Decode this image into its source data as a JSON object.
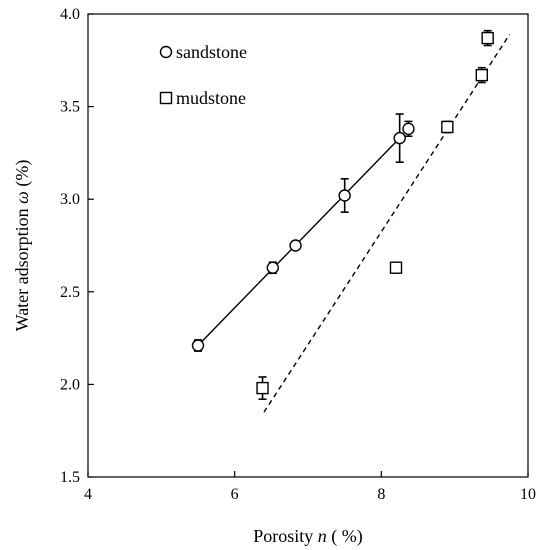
{
  "chart_data": {
    "type": "scatter",
    "title": "",
    "xlabel": {
      "prefix": "Porosity ",
      "var": "n",
      "suffix": " ( %)"
    },
    "ylabel": {
      "prefix": "Water adsorption ",
      "var": "ω",
      "suffix": " (%)"
    },
    "xlim": [
      4,
      10
    ],
    "ylim": [
      1.5,
      4.0
    ],
    "xticks": [
      4,
      6,
      8,
      10
    ],
    "xtick_labels": [
      "4",
      "6",
      "8",
      "10"
    ],
    "yticks": [
      1.5,
      2.0,
      2.5,
      3.0,
      3.5,
      4.0
    ],
    "ytick_labels": [
      "1.5",
      "2.0",
      "2.5",
      "3.0",
      "3.5",
      "4.0"
    ],
    "grid": false,
    "legend_position": "top-left",
    "series": [
      {
        "name": "sandstone",
        "marker": "circle",
        "points": [
          {
            "x": 5.5,
            "y": 2.21,
            "err": 0.03
          },
          {
            "x": 6.52,
            "y": 2.63,
            "err": 0.03
          },
          {
            "x": 6.83,
            "y": 2.75,
            "err": 0.02
          },
          {
            "x": 7.5,
            "y": 3.02,
            "err": 0.09
          },
          {
            "x": 8.25,
            "y": 3.33,
            "err": 0.13
          },
          {
            "x": 8.37,
            "y": 3.38,
            "err": 0.04
          }
        ],
        "fit": {
          "style": "solid",
          "x": [
            5.5,
            8.25
          ],
          "y": [
            2.21,
            3.33
          ]
        }
      },
      {
        "name": "mudstone",
        "marker": "square",
        "points": [
          {
            "x": 6.38,
            "y": 1.98,
            "err": 0.06
          },
          {
            "x": 8.2,
            "y": 2.63,
            "err": 0.02
          },
          {
            "x": 8.9,
            "y": 3.39,
            "err": 0.03
          },
          {
            "x": 9.37,
            "y": 3.67,
            "err": 0.04
          },
          {
            "x": 9.45,
            "y": 3.87,
            "err": 0.04
          }
        ],
        "fit": {
          "style": "dashed",
          "x": [
            6.4,
            9.75
          ],
          "y": [
            1.85,
            3.89
          ]
        }
      }
    ]
  }
}
